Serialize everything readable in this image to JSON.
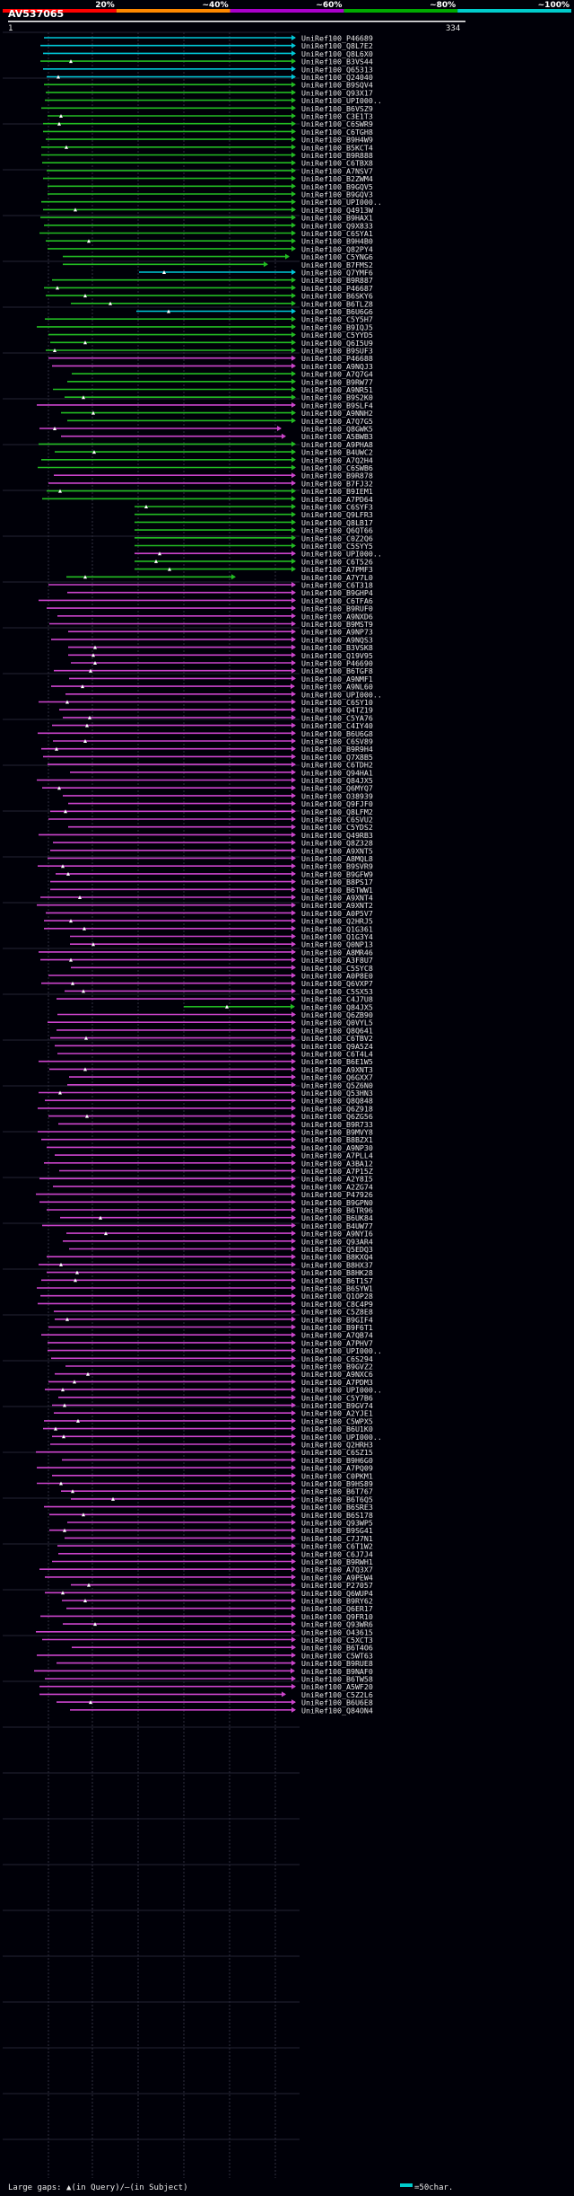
{
  "header": {
    "scale_labels": [
      "20%",
      "~40%",
      "~60%",
      "~80%",
      "~100%"
    ],
    "scale_colors": [
      "#ff0000",
      "#ff8800",
      "#aa00cc",
      "#00aa00",
      "#00cccc"
    ],
    "query_id": "AV537065",
    "ruler_start": "1",
    "ruler_end": "334"
  },
  "footer": {
    "legend_text": "Large gaps: ▲(in Query)/—(in Subject)",
    "scale_text": "=50char."
  },
  "hits": [
    "UniRef100_P46689",
    "UniRef100_Q8L7E2",
    "UniRef100_Q8L6X0",
    "UniRef100_B3VS44",
    "UniRef100_Q65313",
    "UniRef100_Q24040",
    "UniRef100_B9SQV4",
    "UniRef100_Q93X17",
    "UniRef100_UPI000..",
    "UniRef100_B6VSZ9",
    "UniRef100_C3E1T3",
    "UniRef100_C6SWR9",
    "UniRef100_C6TGH8",
    "UniRef100_B9H4W9",
    "UniRef100_B5KCT4",
    "UniRef100_B9R888",
    "UniRef100_C6TBX8",
    "UniRef100_A7NSV7",
    "UniRef100_B2ZWM4",
    "UniRef100_B9GQV5",
    "UniRef100_B9GQV3",
    "UniRef100_UPI000..",
    "UniRef100_Q4913W",
    "UniRef100_B9HAX1",
    "UniRef100_Q9X833",
    "UniRef100_C6SYA1",
    "UniRef100_B9H4B0",
    "UniRef100_Q82PY4",
    "UniRef100_C5YNG6",
    "UniRef100_B7FMS2",
    "UniRef100_Q7YMF6",
    "UniRef100_B9R887",
    "UniRef100_P46687",
    "UniRef100_B6SKY6",
    "UniRef100_B6TLZ8",
    "UniRef100_B6U6G6",
    "UniRef100_C5Y5H7",
    "UniRef100_B9IQJ5",
    "UniRef100_C5YYD5",
    "UniRef100_Q6I5U9",
    "UniRef100_B9SUF3",
    "UniRef100_P46688",
    "UniRef100_A9NQJ3",
    "UniRef100_A7Q7G4",
    "UniRef100_B9RW77",
    "UniRef100_A9NR51",
    "UniRef100_B9S2K0",
    "UniRef100_B9SLF4",
    "UniRef100_A9NNH2",
    "UniRef100_A7Q7G5",
    "UniRef100_Q8GWK5",
    "UniRef100_A5BWB3",
    "UniRef100_A9PHA8",
    "UniRef100_B4UWC2",
    "UniRef100_A7Q2H4",
    "UniRef100_C6SWB6",
    "UniRef100_B9R878",
    "UniRef100_B7FJ32",
    "UniRef100_B9IEM1",
    "UniRef100_A7PD64",
    "UniRef100_C6SYF3",
    "UniRef100_Q9LFR3",
    "UniRef100_Q8LB17",
    "UniRef100_Q6QT66",
    "UniRef100_C0Z2Q6",
    "UniRef100_C5SYY5",
    "UniRef100_UPI000..",
    "UniRef100_C6T526",
    "UniRef100_A7PMF3",
    "UniRef100_A7Y7L0",
    "UniRef100_C6T318",
    "UniRef100_B9GHP4",
    "UniRef100_C6TFA6",
    "UniRef100_B9RUF0",
    "UniRef100_A9NXD6",
    "UniRef100_B9MST9",
    "UniRef100_A9NP73",
    "UniRef100_A9NQS3",
    "UniRef100_B3VSK8",
    "UniRef100_Q19V95",
    "UniRef100_P46690",
    "UniRef100_B6TGF8",
    "UniRef100_A9NMF1",
    "UniRef100_A9NL60",
    "UniRef100_UPI000..",
    "UniRef100_C6SY10",
    "UniRef100_Q4TZ19",
    "UniRef100_C5YA76",
    "UniRef100_C4IY40",
    "UniRef100_B6U6G8",
    "UniRef100_C6SV89",
    "UniRef100_B9R9H4",
    "UniRef100_Q7X8B5",
    "UniRef100_C6TDH2",
    "UniRef100_Q94HA1",
    "UniRef100_Q84JX5",
    "UniRef100_Q6MYQ7",
    "UniRef100_O38939",
    "UniRef100_Q9FJF0",
    "UniRef100_Q8LFM2",
    "UniRef100_C6SVU2",
    "UniRef100_C5YDS2",
    "UniRef100_Q49RB3",
    "UniRef100_Q8Z328",
    "UniRef100_A9XNT5",
    "UniRef100_A8MQL8",
    "UniRef100_B9SVR9",
    "UniRef100_B9GFW9",
    "UniRef100_B8PS17",
    "UniRef100_B6TWW1",
    "UniRef100_A9XNT4",
    "UniRef100_A9XNT2",
    "UniRef100_A0P5V7",
    "UniRef100_Q2HRJ5",
    "UniRef100_Q1G361",
    "UniRef100_Q1G3Y4",
    "UniRef100_Q0NP13",
    "UniRef100_A8MR46",
    "UniRef100_A3F8U7",
    "UniRef100_C5SYC8",
    "UniRef100_A0P8E0",
    "UniRef100_Q6VXP7",
    "UniRef100_C5SX53",
    "UniRef100_C4J7U8",
    "UniRef100_Q84JX5",
    "UniRef100_Q6ZB90",
    "UniRef100_Q0VYL5",
    "UniRef100_Q8Q641",
    "UniRef100_C6TBV2",
    "UniRef100_Q9A5Z4",
    "UniRef100_C6T4L4",
    "UniRef100_B6E1W5",
    "UniRef100_A9XNT3",
    "UniRef100_Q6GXX7",
    "UniRef100_Q5Z6N0",
    "UniRef100_Q53HN3",
    "UniRef100_Q8Q848",
    "UniRef100_Q6Z918",
    "UniRef100_Q6ZG56",
    "UniRef100_B9R733",
    "UniRef100_B9MVY8",
    "UniRef100_B8BZX1",
    "UniRef100_A9NP30",
    "UniRef100_A7PLL4",
    "UniRef100_A3BA12",
    "UniRef100_A7P15Z",
    "UniRef100_A2Y8I5",
    "UniRef100_A2ZG74",
    "UniRef100_P47926",
    "UniRef100_B9GPN0",
    "UniRef100_B6TR96",
    "UniRef100_B6UK84",
    "UniRef100_B4UW77",
    "UniRef100_A9NYI6",
    "UniRef100_Q93AR4",
    "UniRef100_Q5EDQ3",
    "UniRef100_B8KXQ4",
    "UniRef100_B8HX37",
    "UniRef100_B8HK28",
    "UniRef100_B6T1S7",
    "UniRef100_B6SYW1",
    "UniRef100_Q1OP28",
    "UniRef100_C8C4P9",
    "UniRef100_C5Z8E8",
    "UniRef100_B9GIF4",
    "UniRef100_B9F6T1",
    "UniRef100_A7QB74",
    "UniRef100_A7PHV7",
    "UniRef100_UPI000..",
    "UniRef100_C6S294",
    "UniRef100_B9GVZ2",
    "UniRef100_A9NXC6",
    "UniRef100_A7PDM3",
    "UniRef100_UPI000..",
    "UniRef100_C5Y7B6",
    "UniRef100_B9GV74",
    "UniRef100_A2YJE1",
    "UniRef100_C5WPX5",
    "UniRef100_B6U1K0",
    "UniRef100_UPI000..",
    "UniRef100_Q2HRH3",
    "UniRef100_C6SZ15",
    "UniRef100_B9H6G0",
    "UniRef100_A7PQ09",
    "UniRef100_C0PKM1",
    "UniRef100_B9HS89",
    "UniRef100_B6T767",
    "UniRef100_B6T6Q5",
    "UniRef100_B6SRE3",
    "UniRef100_B6S178",
    "UniRef100_Q93WP5",
    "UniRef100_B9SG41",
    "UniRef100_C7J7N1",
    "UniRef100_C6T1W2",
    "UniRef100_C6J7J4",
    "UniRef100_B9RWH1",
    "UniRef100_A7Q3X7",
    "UniRef100_A9PEW4",
    "UniRef100_P27057",
    "UniRef100_Q6WUP4",
    "UniRef100_B9RY62",
    "UniRef100_Q6ER17",
    "UniRef100_Q9FR10",
    "UniRef100_Q93WR6",
    "UniRef100_O43615",
    "UniRef100_C5XCT3",
    "UniRef100_B6T4O6",
    "UniRef100_C5WT63",
    "UniRef100_B9RUE8",
    "UniRef100_B9NAF0",
    "UniRef100_B6TW58",
    "UniRef100_A5WF20",
    "UniRef100_C5Z2L6",
    "UniRef100_B6U6E8",
    "UniRef100_Q84ON4"
  ]
}
